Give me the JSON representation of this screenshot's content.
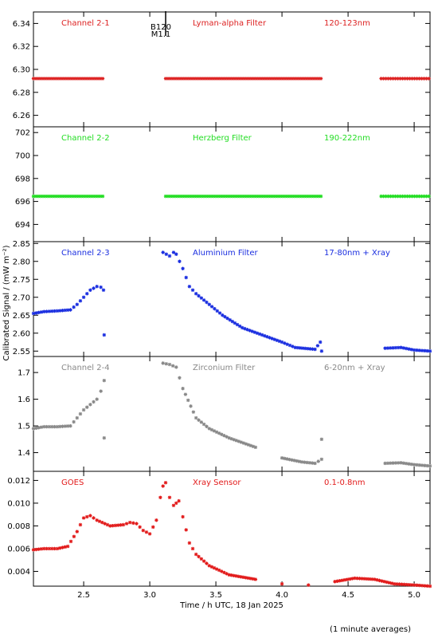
{
  "figure": {
    "ylabel": "Calibrated Signal / (mW m⁻²)",
    "xlabel": "Time / h UTC, 18 Jan 2025",
    "footnote": "(1 minute averages)",
    "marker_label_top": "B120",
    "marker_label_bottom": "M1.1",
    "marker_time": 3.12,
    "xlim": [
      2.12,
      5.12
    ],
    "xticks": [
      2.5,
      3.0,
      3.5,
      4.0,
      4.5,
      5.0
    ],
    "xticklabels": [
      "2.5",
      "3.0",
      "3.5",
      "4.0",
      "4.5",
      "5.0"
    ]
  },
  "chart_data": [
    {
      "type": "scatter",
      "channel": "Channel 2-1",
      "filter": "Lyman-alpha Filter",
      "band": "120-123nm",
      "color": "#dd2222",
      "ylim": [
        6.25,
        6.35
      ],
      "yticks": [
        6.26,
        6.28,
        6.3,
        6.32,
        6.34
      ],
      "yticklabels": [
        "6.26",
        "6.28",
        "6.30",
        "6.32",
        "6.34"
      ],
      "segments": [
        {
          "x": [
            2.12,
            2.66
          ],
          "y": [
            6.292,
            6.292
          ]
        },
        {
          "x": [
            3.12,
            4.3
          ],
          "y": [
            6.292,
            6.292
          ]
        },
        {
          "x": [
            4.75,
            5.12
          ],
          "y": [
            6.292,
            6.292
          ]
        }
      ]
    },
    {
      "type": "scatter",
      "channel": "Channel 2-2",
      "filter": "Herzberg Filter",
      "band": "190-222nm",
      "color": "#22dd22",
      "ylim": [
        692.5,
        702.5
      ],
      "yticks": [
        694,
        696,
        698,
        700,
        702
      ],
      "yticklabels": [
        "694",
        "696",
        "698",
        "700",
        "702"
      ],
      "segments": [
        {
          "x": [
            2.12,
            2.66
          ],
          "y": [
            696.45,
            696.45
          ]
        },
        {
          "x": [
            3.12,
            4.3
          ],
          "y": [
            696.45,
            696.45
          ]
        },
        {
          "x": [
            4.75,
            5.12
          ],
          "y": [
            696.45,
            696.45
          ]
        }
      ]
    },
    {
      "type": "scatter",
      "channel": "Channel 2-3",
      "filter": "Aluminium Filter",
      "band": "17-80nm + Xray",
      "color": "#1a2ee0",
      "ylim": [
        2.535,
        2.855
      ],
      "yticks": [
        2.55,
        2.6,
        2.65,
        2.7,
        2.75,
        2.8,
        2.85
      ],
      "yticklabels": [
        "2.55",
        "2.60",
        "2.65",
        "2.70",
        "2.75",
        "2.80",
        "2.85"
      ],
      "points": [
        [
          2.12,
          2.655
        ],
        [
          2.2,
          2.66
        ],
        [
          2.3,
          2.662
        ],
        [
          2.4,
          2.665
        ],
        [
          2.45,
          2.68
        ],
        [
          2.5,
          2.7
        ],
        [
          2.55,
          2.72
        ],
        [
          2.6,
          2.73
        ],
        [
          2.63,
          2.728
        ],
        [
          2.65,
          2.72
        ],
        [
          2.655,
          2.595
        ],
        [
          3.1,
          2.825
        ],
        [
          3.15,
          2.815
        ],
        [
          3.18,
          2.825
        ],
        [
          3.2,
          2.82
        ],
        [
          3.25,
          2.78
        ],
        [
          3.3,
          2.73
        ],
        [
          3.35,
          2.71
        ],
        [
          3.45,
          2.68
        ],
        [
          3.55,
          2.65
        ],
        [
          3.7,
          2.615
        ],
        [
          3.85,
          2.595
        ],
        [
          4.0,
          2.575
        ],
        [
          4.1,
          2.56
        ],
        [
          4.25,
          2.555
        ],
        [
          4.29,
          2.575
        ],
        [
          4.3,
          2.55
        ],
        [
          4.78,
          2.558
        ],
        [
          4.9,
          2.56
        ],
        [
          5.0,
          2.553
        ],
        [
          5.12,
          2.55
        ]
      ]
    },
    {
      "type": "scatter",
      "channel": "Channel 2-4",
      "filter": "Zirconium Filter",
      "band": "6-20nm + Xray",
      "color": "#888888",
      "ylim": [
        1.33,
        1.76
      ],
      "yticks": [
        1.4,
        1.5,
        1.6,
        1.7
      ],
      "yticklabels": [
        "1.4",
        "1.5",
        "1.6",
        "1.7"
      ],
      "points": [
        [
          2.12,
          1.49
        ],
        [
          2.2,
          1.497
        ],
        [
          2.3,
          1.497
        ],
        [
          2.4,
          1.5
        ],
        [
          2.45,
          1.53
        ],
        [
          2.5,
          1.56
        ],
        [
          2.55,
          1.58
        ],
        [
          2.6,
          1.6
        ],
        [
          2.63,
          1.63
        ],
        [
          2.655,
          1.67
        ],
        [
          2.655,
          1.455
        ],
        [
          3.1,
          1.735
        ],
        [
          3.15,
          1.73
        ],
        [
          3.2,
          1.72
        ],
        [
          3.25,
          1.64
        ],
        [
          3.35,
          1.53
        ],
        [
          3.45,
          1.49
        ],
        [
          3.6,
          1.455
        ],
        [
          3.8,
          1.42
        ],
        [
          4.0,
          1.38
        ],
        [
          4.15,
          1.365
        ],
        [
          4.25,
          1.36
        ],
        [
          4.3,
          1.375
        ],
        [
          4.3,
          1.45
        ],
        [
          4.78,
          1.36
        ],
        [
          4.9,
          1.362
        ],
        [
          5.0,
          1.355
        ],
        [
          5.12,
          1.35
        ]
      ]
    },
    {
      "type": "scatter",
      "channel": "GOES",
      "filter": "Xray Sensor",
      "band": "0.1-0.8nm",
      "color": "#e21a1a",
      "ylim": [
        0.0027,
        0.0128
      ],
      "yticks": [
        0.004,
        0.006,
        0.008,
        0.01,
        0.012
      ],
      "yticklabels": [
        "0.004",
        "0.006",
        "0.008",
        "0.010",
        "0.012"
      ],
      "points": [
        [
          2.12,
          0.0059
        ],
        [
          2.2,
          0.006
        ],
        [
          2.3,
          0.006
        ],
        [
          2.38,
          0.0062
        ],
        [
          2.45,
          0.0075
        ],
        [
          2.5,
          0.0087
        ],
        [
          2.55,
          0.0089
        ],
        [
          2.6,
          0.0085
        ],
        [
          2.7,
          0.008
        ],
        [
          2.8,
          0.0081
        ],
        [
          2.85,
          0.0083
        ],
        [
          2.9,
          0.0082
        ],
        [
          2.95,
          0.0076
        ],
        [
          3.0,
          0.0073
        ],
        [
          3.05,
          0.0085
        ],
        [
          3.08,
          0.0105
        ],
        [
          3.1,
          0.0115
        ],
        [
          3.12,
          0.0118
        ],
        [
          3.15,
          0.0105
        ],
        [
          3.18,
          0.0098
        ],
        [
          3.22,
          0.0102
        ],
        [
          3.25,
          0.0088
        ],
        [
          3.3,
          0.0065
        ],
        [
          3.35,
          0.0055
        ],
        [
          3.45,
          0.0045
        ],
        [
          3.6,
          0.0037
        ],
        [
          3.8,
          0.0033
        ],
        [
          4.0,
          0.0029
        ],
        [
          4.2,
          0.0028
        ],
        [
          4.4,
          0.0031
        ],
        [
          4.55,
          0.0034
        ],
        [
          4.7,
          0.0033
        ],
        [
          4.85,
          0.0029
        ],
        [
          5.0,
          0.0028
        ],
        [
          5.12,
          0.0027
        ]
      ]
    }
  ]
}
